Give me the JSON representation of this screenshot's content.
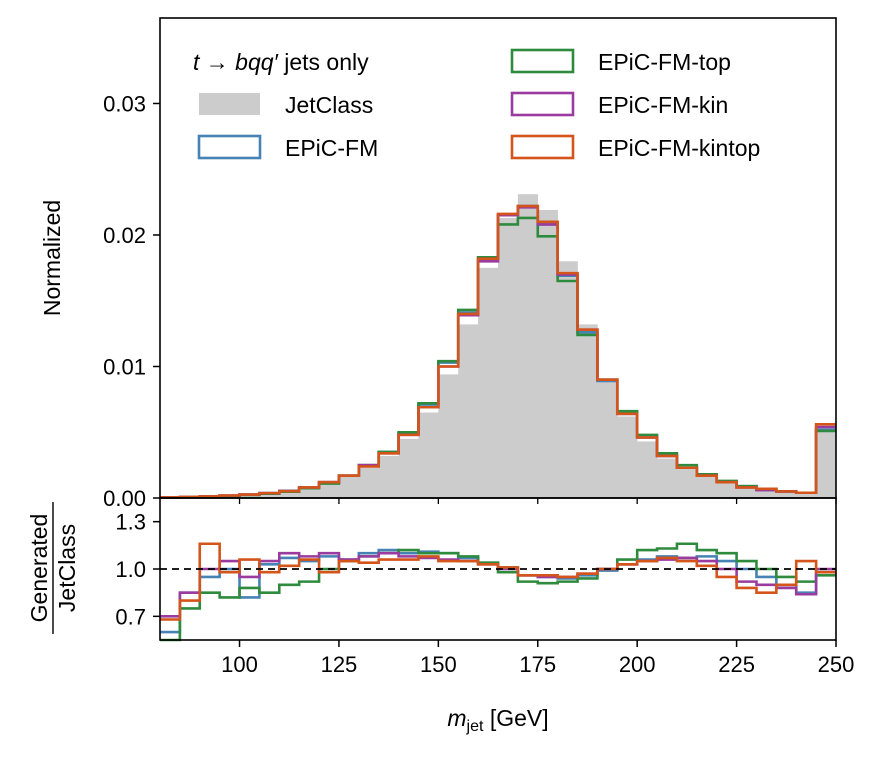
{
  "chart_data": [
    {
      "type": "histogram-step",
      "panel": "main",
      "ylabel": "Normalized",
      "ylim": [
        0,
        0.0365
      ],
      "xlim": [
        80,
        250
      ],
      "yticks": [
        {
          "value": 0.0,
          "label": "0.00"
        },
        {
          "value": 0.01,
          "label": "0.01"
        },
        {
          "value": 0.02,
          "label": "0.02"
        },
        {
          "value": 0.03,
          "label": "0.03"
        }
      ],
      "legend": {
        "title_italic": "t → bqq′",
        "title_plain": " jets only",
        "placement": "top-left",
        "entries": [
          "JetClass",
          "EPiC-FM",
          "EPiC-FM-top",
          "EPiC-FM-kin",
          "EPiC-FM-kintop"
        ]
      },
      "bin_width": 5,
      "bin_start": 80,
      "series": [
        {
          "name": "JetClass",
          "style": "filled",
          "color": "#cccccc",
          "values": [
            5e-05,
            8e-05,
            0.00012,
            0.00018,
            0.00025,
            0.00035,
            0.0005,
            0.00075,
            0.0011,
            0.0016,
            0.0023,
            0.0032,
            0.0045,
            0.0065,
            0.0094,
            0.0132,
            0.0175,
            0.0213,
            0.0231,
            0.0219,
            0.018,
            0.0132,
            0.009,
            0.0062,
            0.0043,
            0.003,
            0.0022,
            0.0016,
            0.0012,
            0.0009,
            0.0007,
            0.0005,
            0.0004,
            0.0053
          ]
        },
        {
          "name": "EPiC-FM",
          "style": "step",
          "color": "#4682b4",
          "values": [
            4e-05,
            7e-05,
            0.00011,
            0.00018,
            0.00026,
            0.00038,
            0.00055,
            0.0008,
            0.0012,
            0.0017,
            0.0025,
            0.0035,
            0.0049,
            0.0071,
            0.0103,
            0.0141,
            0.0183,
            0.0215,
            0.0222,
            0.0208,
            0.0169,
            0.0126,
            0.0089,
            0.0064,
            0.0046,
            0.0032,
            0.0023,
            0.0017,
            0.0012,
            0.0009,
            0.0006,
            0.0005,
            0.0004,
            0.0052
          ]
        },
        {
          "name": "EPiC-FM-top",
          "style": "step",
          "color": "#2e8b3e",
          "values": [
            3e-05,
            6e-05,
            0.0001,
            0.00016,
            0.00023,
            0.00033,
            0.00048,
            0.00075,
            0.0011,
            0.0017,
            0.0025,
            0.0035,
            0.005,
            0.0072,
            0.0104,
            0.0143,
            0.0183,
            0.0208,
            0.0213,
            0.0199,
            0.0165,
            0.0124,
            0.009,
            0.0066,
            0.0048,
            0.0034,
            0.0025,
            0.0018,
            0.0013,
            0.0009,
            0.0007,
            0.0005,
            0.0004,
            0.0051
          ]
        },
        {
          "name": "EPiC-FM-kin",
          "style": "step",
          "color": "#9b3ba0",
          "values": [
            4e-05,
            7e-05,
            0.00012,
            0.00019,
            0.00026,
            0.00037,
            0.00053,
            0.0008,
            0.0012,
            0.0017,
            0.0025,
            0.0034,
            0.0048,
            0.0069,
            0.01,
            0.0139,
            0.018,
            0.0215,
            0.0221,
            0.0208,
            0.017,
            0.0128,
            0.009,
            0.0064,
            0.0046,
            0.0032,
            0.0023,
            0.0017,
            0.0012,
            0.0008,
            0.0006,
            0.0005,
            0.0004,
            0.0054
          ]
        },
        {
          "name": "EPiC-FM-kintop",
          "style": "step",
          "color": "#d4541a",
          "values": [
            4e-05,
            8e-05,
            0.00012,
            0.00019,
            0.00026,
            0.00037,
            0.00052,
            0.0008,
            0.0012,
            0.0017,
            0.0024,
            0.0034,
            0.0048,
            0.0069,
            0.01,
            0.014,
            0.0182,
            0.0216,
            0.0222,
            0.021,
            0.0171,
            0.0128,
            0.009,
            0.0064,
            0.0046,
            0.0032,
            0.0023,
            0.0017,
            0.0012,
            0.0008,
            0.0007,
            0.0005,
            0.0004,
            0.0056
          ]
        }
      ]
    },
    {
      "type": "ratio-step",
      "panel": "ratio",
      "ylabel_numerator": "Generated",
      "ylabel_denominator": "JetClass",
      "xlabel_italic": "m",
      "xlabel_sub": "jet",
      "xlabel_unit": " [GeV]",
      "ylim": [
        0.55,
        1.45
      ],
      "xlim": [
        80,
        250
      ],
      "reference_line": 1.0,
      "yticks": [
        {
          "value": 0.7,
          "label": "0.7"
        },
        {
          "value": 1.0,
          "label": "1.0"
        },
        {
          "value": 1.3,
          "label": "1.3"
        }
      ],
      "xticks": [
        {
          "value": 100,
          "label": "100"
        },
        {
          "value": 125,
          "label": "125"
        },
        {
          "value": 150,
          "label": "150"
        },
        {
          "value": 175,
          "label": "175"
        },
        {
          "value": 200,
          "label": "200"
        },
        {
          "value": 225,
          "label": "225"
        },
        {
          "value": 250,
          "label": "250"
        }
      ],
      "bin_width": 5,
      "bin_start": 80,
      "series": [
        {
          "name": "EPiC-FM",
          "color": "#4682b4",
          "values": [
            0.6,
            0.85,
            0.95,
            1.0,
            0.82,
            1.03,
            1.07,
            1.05,
            1.08,
            1.06,
            1.1,
            1.12,
            1.1,
            1.11,
            1.1,
            1.07,
            1.04,
            1.01,
            0.96,
            0.95,
            0.94,
            0.96,
            0.99,
            1.03,
            1.06,
            1.08,
            1.07,
            1.08,
            1.05,
            1.0,
            0.95,
            0.9,
            0.85,
            0.98
          ]
        },
        {
          "name": "EPiC-FM-top",
          "color": "#2e8b3e",
          "values": [
            0.5,
            0.75,
            0.85,
            0.82,
            0.88,
            0.85,
            0.9,
            0.92,
            1.0,
            1.05,
            1.08,
            1.1,
            1.12,
            1.1,
            1.1,
            1.08,
            1.04,
            0.98,
            0.92,
            0.91,
            0.92,
            0.94,
            1.0,
            1.06,
            1.12,
            1.13,
            1.16,
            1.12,
            1.1,
            1.05,
            1.0,
            0.95,
            0.92,
            0.96
          ]
        },
        {
          "name": "EPiC-FM-kin",
          "color": "#9b3ba0",
          "values": [
            0.7,
            0.85,
            1.0,
            1.05,
            0.95,
            1.05,
            1.1,
            1.08,
            1.1,
            1.06,
            1.08,
            1.1,
            1.08,
            1.07,
            1.06,
            1.05,
            1.03,
            1.0,
            0.96,
            0.95,
            0.95,
            0.97,
            1.0,
            1.03,
            1.05,
            1.06,
            1.07,
            1.05,
            1.0,
            0.92,
            0.9,
            0.88,
            0.84,
            1.0
          ]
        },
        {
          "name": "EPiC-FM-kintop",
          "color": "#d4541a",
          "values": [
            0.68,
            0.8,
            1.16,
            0.98,
            1.06,
            0.98,
            1.02,
            1.06,
            0.98,
            1.05,
            1.04,
            1.06,
            1.06,
            1.08,
            1.05,
            1.05,
            1.03,
            1.01,
            0.96,
            0.96,
            0.95,
            0.97,
            1.0,
            1.03,
            1.05,
            1.07,
            1.05,
            1.02,
            0.95,
            0.88,
            0.85,
            0.9,
            1.05,
            0.98
          ]
        }
      ]
    }
  ]
}
